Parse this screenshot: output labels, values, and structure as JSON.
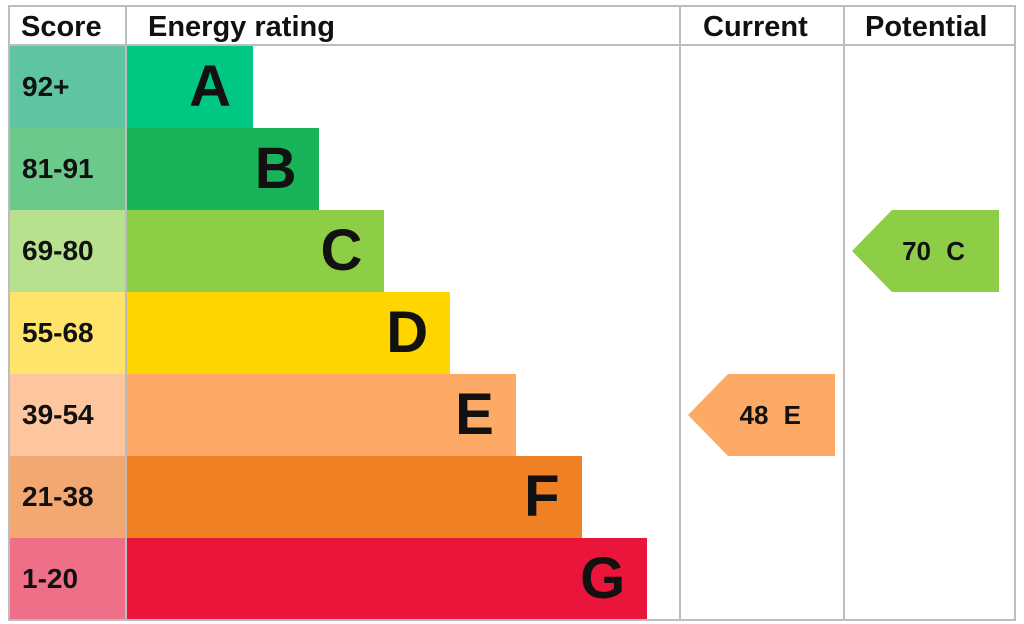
{
  "chart_data": {
    "type": "bar",
    "headers": {
      "score": "Score",
      "rating": "Energy rating",
      "current": "Current",
      "potential": "Potential"
    },
    "bands": [
      {
        "letter": "A",
        "range": "92+",
        "color": "#00c781",
        "score_color": "#5fc4a2"
      },
      {
        "letter": "B",
        "range": "81-91",
        "color": "#19b459",
        "score_color": "#6cc98c"
      },
      {
        "letter": "C",
        "range": "69-80",
        "color": "#8dce46",
        "score_color": "#b7e08f"
      },
      {
        "letter": "D",
        "range": "55-68",
        "color": "#ffd500",
        "score_color": "#ffe46c"
      },
      {
        "letter": "E",
        "range": "39-54",
        "color": "#fcaa65",
        "score_color": "#fdc69f"
      },
      {
        "letter": "F",
        "range": "21-38",
        "color": "#ef8023",
        "score_color": "#f3a872"
      },
      {
        "letter": "G",
        "range": "1-20",
        "color": "#e9153b",
        "score_color": "#ef6e88"
      }
    ],
    "current": {
      "value": 48,
      "band": "E",
      "label": "48 E",
      "color": "#fcaa65"
    },
    "potential": {
      "value": 70,
      "band": "C",
      "label": "70 C",
      "color": "#8dce46"
    }
  }
}
